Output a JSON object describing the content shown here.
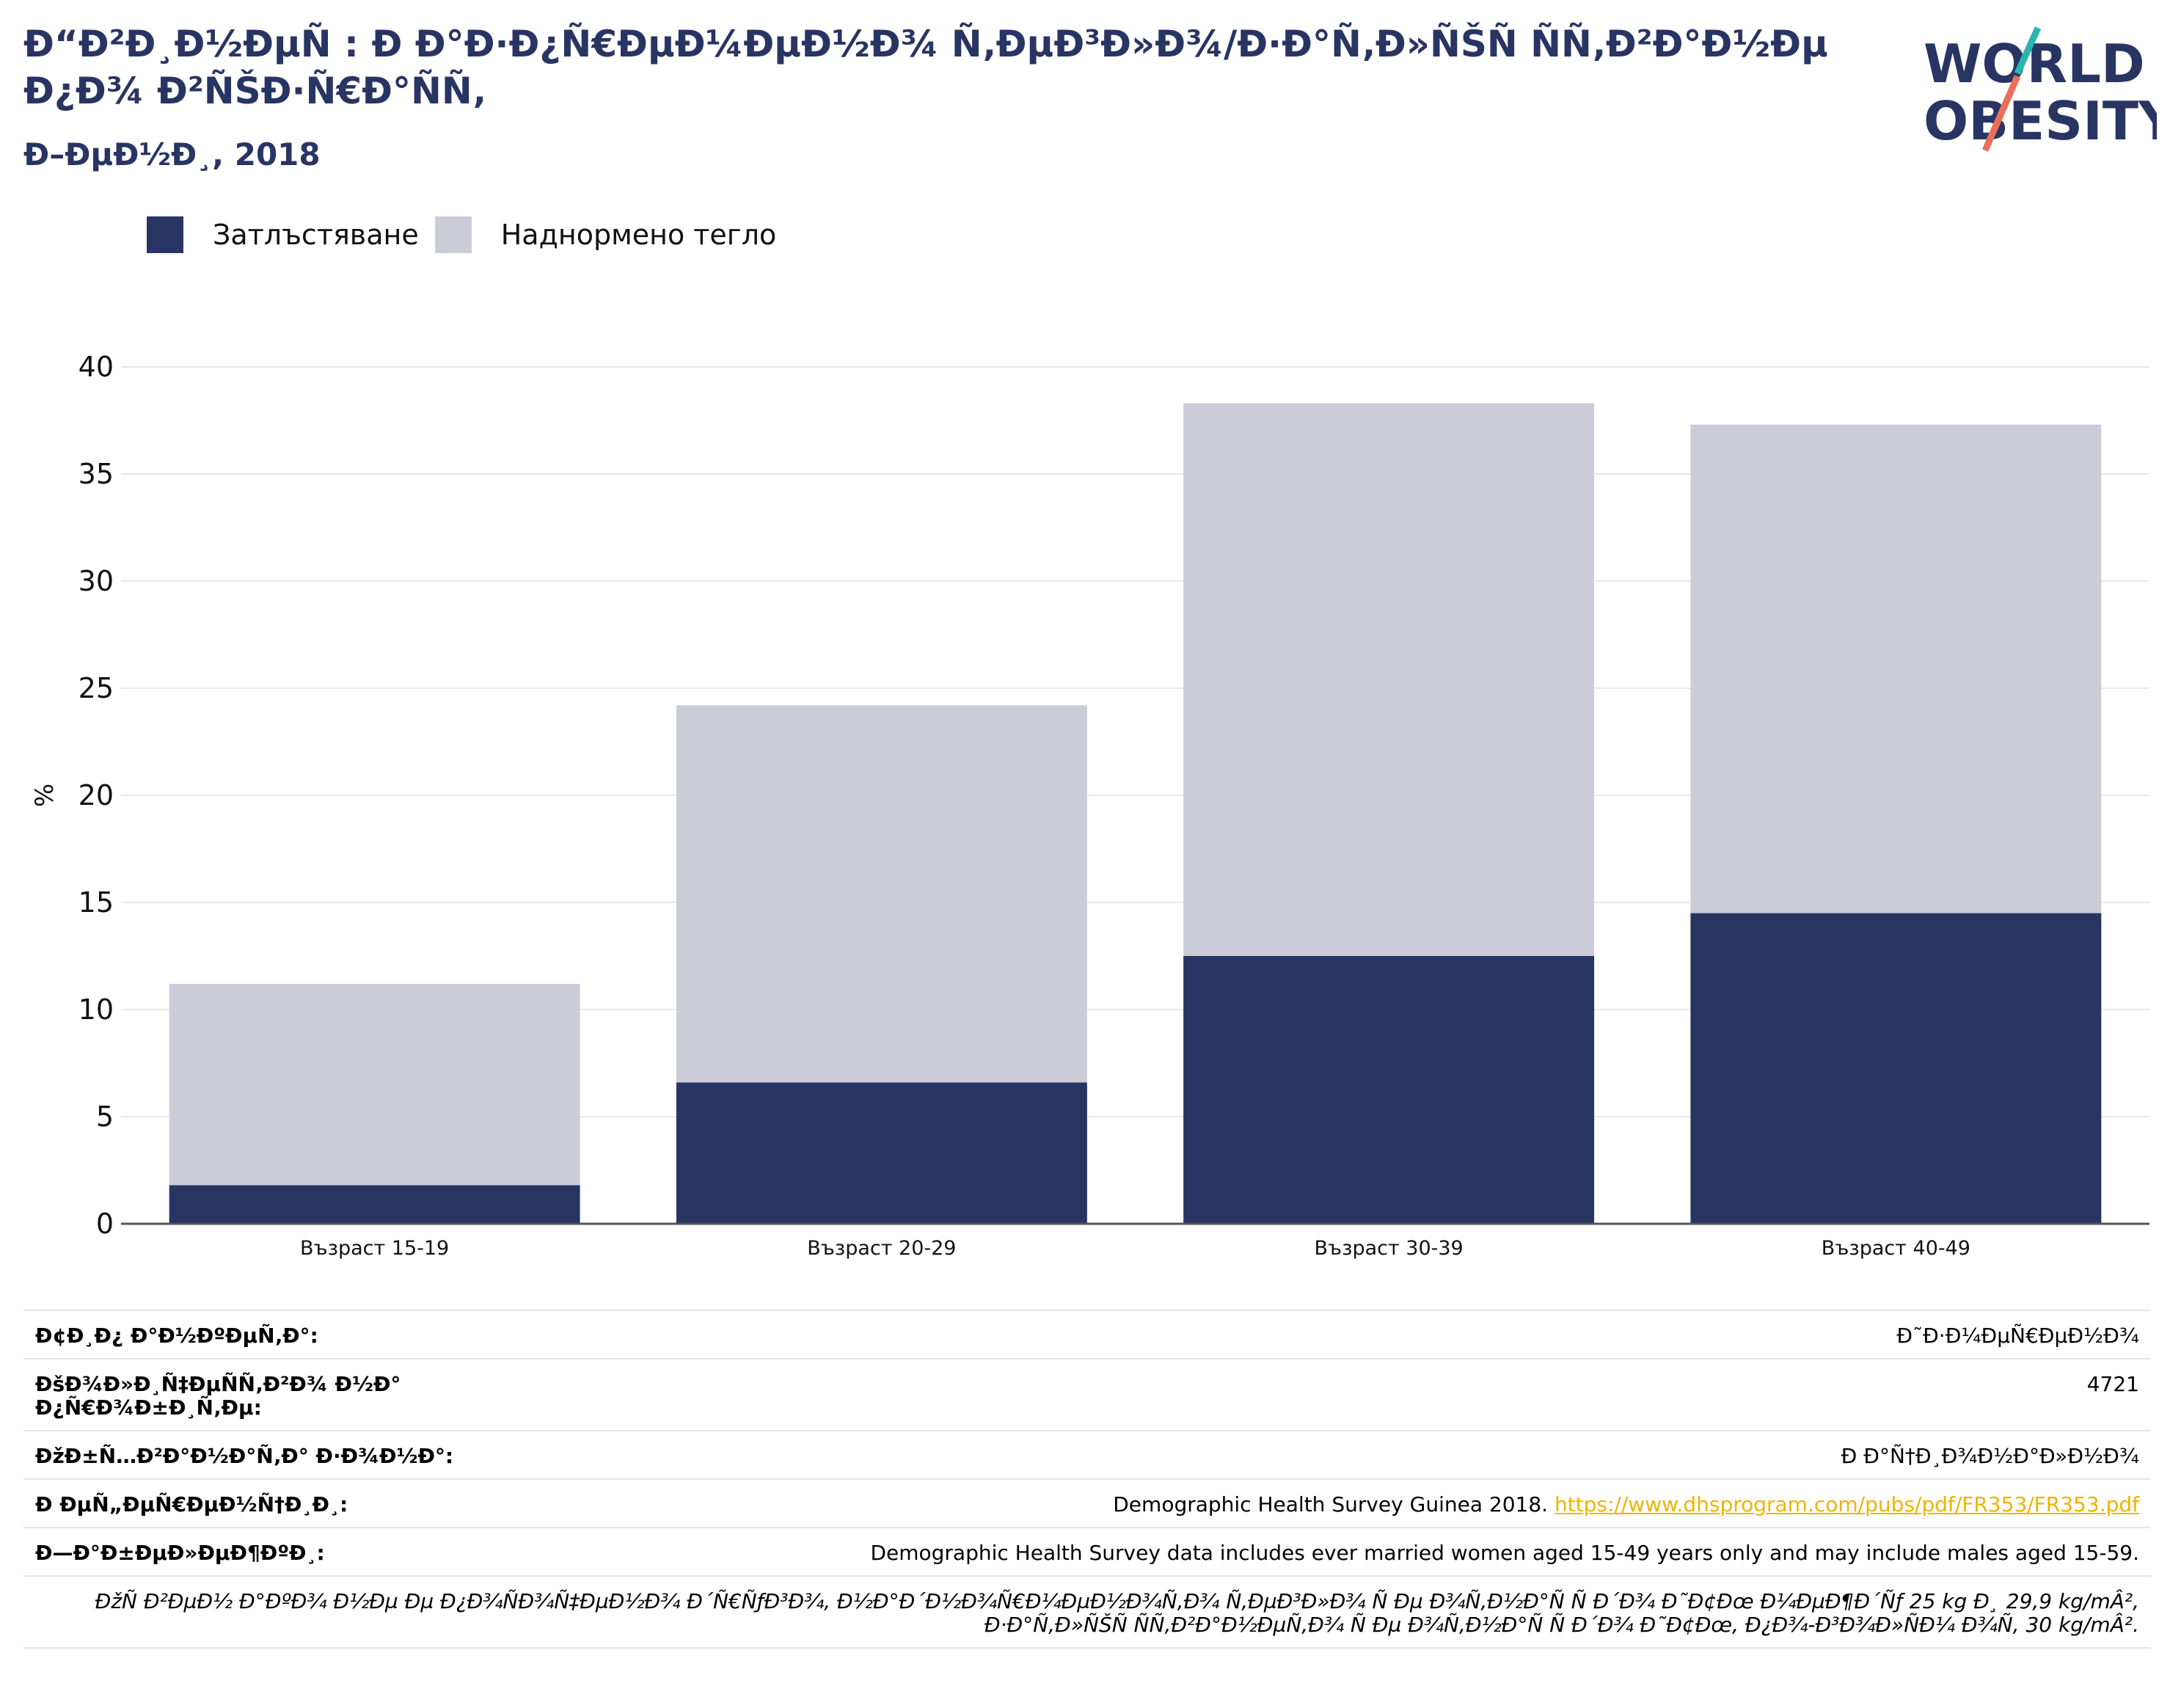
{
  "header": {
    "title": "Ð“Ð²Ð¸Ð½ÐµÑ : Ð Ð°Ð·Ð¿Ñ€ÐµÐ¼ÐµÐ½Ð¾ Ñ‚ÐµÐ³Ð»Ð¾/Ð·Ð°Ñ‚Ð»ÑŠÑ ÑÑ‚Ð²Ð°Ð½Ðµ Ð¿Ð¾ Ð²ÑŠÐ·Ñ€Ð°ÑÑ‚",
    "subtitle": "Ð–ÐµÐ½Ð¸, 2018"
  },
  "logo": {
    "line1": "WORLD",
    "line2": "OBESITY",
    "accent_teal": "#2bb5b0",
    "accent_coral": "#e8705b"
  },
  "legend": [
    {
      "label": "Затлъстяване",
      "color": "#283563"
    },
    {
      "label": "Наднормено тегло",
      "color": "#cbccd8"
    }
  ],
  "chart_data": {
    "type": "bar",
    "stacked": true,
    "categories": [
      "Възраст 15-19",
      "Възраст 20-29",
      "Възраст 30-39",
      "Възраст 40-49"
    ],
    "series": [
      {
        "name": "Затлъстяване",
        "color": "#283563",
        "values": [
          1.8,
          6.6,
          12.5,
          14.5
        ]
      },
      {
        "name": "Наднормено тегло",
        "color": "#cbccd8",
        "values": [
          9.4,
          17.6,
          25.8,
          22.8
        ]
      }
    ],
    "ylabel": "%",
    "yticks": [
      0,
      5,
      10,
      15,
      20,
      25,
      30,
      35,
      40
    ],
    "ylim": [
      0,
      40
    ],
    "grid": true
  },
  "info": {
    "rows": [
      {
        "key": "Ð¢Ð¸Ð¿ Ð°Ð½ÐºÐµÑ‚Ð°:",
        "value": "Ð˜Ð·Ð¼ÐµÑ€ÐµÐ½Ð¾"
      },
      {
        "key": "ÐšÐ¾Ð»Ð¸Ñ‡ÐµÑÑ‚Ð²Ð¾ Ð½Ð° Ð¿Ñ€Ð¾Ð±Ð¸Ñ‚Ðµ:",
        "value": "4721"
      },
      {
        "key": "ÐžÐ±Ñ…Ð²Ð°Ð½Ð°Ñ‚Ð° Ð·Ð¾Ð½Ð°:",
        "value": "Ð Ð°Ñ†Ð¸Ð¾Ð½Ð°Ð»Ð½Ð¾"
      }
    ],
    "reference": {
      "key": "Ð ÐµÑ„ÐµÑ€ÐµÐ½Ñ†Ð¸Ð¸:",
      "text": "Demographic Health Survey Guinea 2018. ",
      "link": "https://www.dhsprogram.com/pubs/pdf/FR353/FR353.pdf"
    },
    "notes": {
      "key": "Ð—Ð°Ð±ÐµÐ»ÐµÐ¶ÐºÐ¸:",
      "value": "Demographic Health Survey data includes ever married women aged 15-49 years only and may include males aged 15-59."
    },
    "footnote": "ÐžÑ Ð²ÐµÐ½ Ð°ÐºÐ¾ Ð½Ðµ Ðµ Ð¿Ð¾ÑÐ¾Ñ‡ÐµÐ½Ð¾ Ð´Ñ€ÑƒÐ³Ð¾, Ð½Ð°Ð´Ð½Ð¾Ñ€Ð¼ÐµÐ½Ð¾Ñ‚Ð¾ Ñ‚ÐµÐ³Ð»Ð¾ Ñ Ðµ Ð¾Ñ‚Ð½Ð°Ñ Ñ Ð´Ð¾ Ð˜Ð¢Ðœ Ð¼ÐµÐ¶Ð´Ñƒ 25 kg Ð¸ 29,9 kg/mÂ², Ð·Ð°Ñ‚Ð»ÑŠÑ ÑÑ‚Ð²Ð°Ð½ÐµÑ‚Ð¾ Ñ Ðµ Ð¾Ñ‚Ð½Ð°Ñ Ñ Ð´Ð¾ Ð˜Ð¢Ðœ, Ð¿Ð¾-Ð³Ð¾Ð»ÑÐ¼ Ð¾Ñ‚ 30 kg/mÂ²."
  }
}
